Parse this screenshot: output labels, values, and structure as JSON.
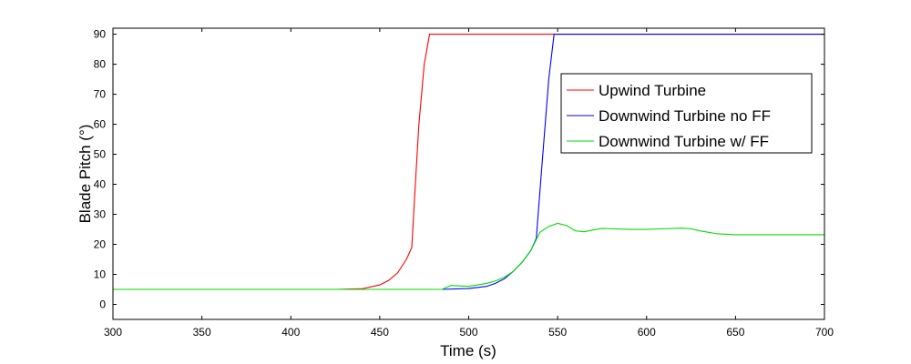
{
  "chart_data": {
    "type": "line",
    "xlabel": "Time (s)",
    "ylabel": "Blade Pitch (°)",
    "xlim": [
      300,
      700
    ],
    "ylim": [
      -5,
      92
    ],
    "xticks": [
      300,
      350,
      400,
      450,
      500,
      550,
      600,
      650,
      700
    ],
    "yticks": [
      0,
      10,
      20,
      30,
      40,
      50,
      60,
      70,
      80,
      90
    ],
    "grid": false,
    "legend_position": "top-right",
    "series": [
      {
        "name": "Upwind Turbine",
        "color": "#ff0000",
        "x": [
          300,
          425,
          440,
          450,
          455,
          460,
          465,
          468,
          470,
          472,
          475,
          478,
          700
        ],
        "y": [
          5,
          5,
          5.2,
          6.5,
          8,
          10.5,
          15,
          19,
          40,
          60,
          80,
          90,
          90
        ]
      },
      {
        "name": "Downwind Turbine no FF",
        "color": "#0000ff",
        "x": [
          300,
          480,
          485,
          500,
          510,
          515,
          520,
          525,
          530,
          535,
          538,
          541,
          545,
          548,
          700
        ],
        "y": [
          5,
          5,
          5,
          5.3,
          6,
          7,
          8.5,
          11,
          14,
          18,
          22,
          45,
          75,
          90,
          90
        ]
      },
      {
        "name": "Downwind Turbine w/ FF",
        "color": "#00dd00",
        "x": [
          300,
          485,
          490,
          500,
          505,
          510,
          515,
          520,
          525,
          530,
          535,
          540,
          545,
          550,
          555,
          560,
          565,
          570,
          575,
          580,
          590,
          600,
          610,
          620,
          625,
          630,
          640,
          650,
          700
        ],
        "y": [
          5,
          5,
          6.3,
          6,
          6.5,
          7,
          7.8,
          9,
          11,
          14,
          18,
          24,
          26,
          27,
          26.3,
          24.5,
          24.2,
          24.8,
          25.3,
          25.2,
          25,
          25,
          25.2,
          25.4,
          25.2,
          24.5,
          23.5,
          23.2,
          23.2
        ]
      }
    ]
  }
}
